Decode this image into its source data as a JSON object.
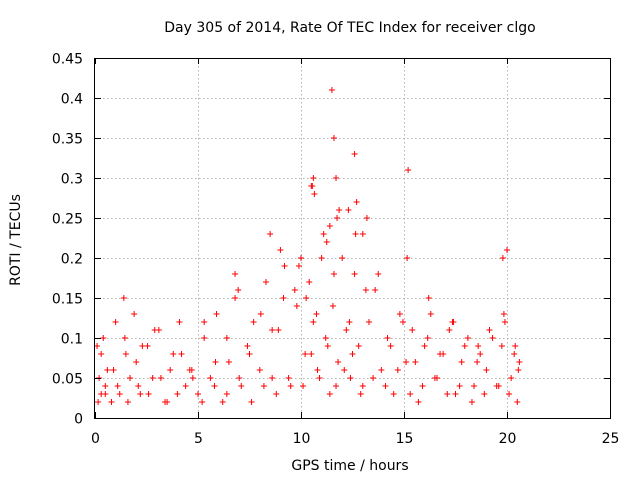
{
  "chart_data": {
    "type": "scatter",
    "title": "Day 305 of 2014, Rate Of TEC Index for receiver clgo",
    "xlabel": "GPS time / hours",
    "ylabel": "ROTI / TECUs",
    "xlim": [
      0,
      25
    ],
    "ylim": [
      0,
      0.45
    ],
    "xticks": [
      0,
      5,
      10,
      15,
      20,
      25
    ],
    "xtick_labels": [
      "0",
      "5",
      "10",
      "15",
      "20",
      "25"
    ],
    "yticks": [
      0,
      0.05,
      0.1,
      0.15,
      0.2,
      0.25,
      0.3,
      0.35,
      0.4,
      0.45
    ],
    "ytick_labels": [
      "0",
      "0.05",
      "0.1",
      "0.15",
      "0.2",
      "0.25",
      "0.3",
      "0.35",
      "0.4",
      "0.45"
    ],
    "grid": true,
    "marker": "+",
    "color": "#ff0000",
    "series": [
      {
        "name": "ROTI",
        "x": [
          0.1,
          0.2,
          0.3,
          0.4,
          0.5,
          0.6,
          0.8,
          1.0,
          1.2,
          1.4,
          1.5,
          1.7,
          1.9,
          2.1,
          2.3,
          2.6,
          2.9,
          3.2,
          3.5,
          3.8,
          4.1,
          4.4,
          4.7,
          5.0,
          5.3,
          5.6,
          5.9,
          6.2,
          6.5,
          6.8,
          7.1,
          7.4,
          7.7,
          8.0,
          8.3,
          8.6,
          8.9,
          9.2,
          9.5,
          9.8,
          10.0,
          10.2,
          10.4,
          10.6,
          10.8,
          11.0,
          11.2,
          11.4,
          11.6,
          11.8,
          12.0,
          12.2,
          12.4,
          12.6,
          12.8,
          13.0,
          13.3,
          13.6,
          13.9,
          14.2,
          14.5,
          14.8,
          15.1,
          15.4,
          15.7,
          16.0,
          16.3,
          16.6,
          16.9,
          17.2,
          17.5,
          17.8,
          18.1,
          18.4,
          18.7,
          19.0,
          19.3,
          19.6,
          19.8,
          19.9,
          20.0,
          20.2,
          20.4,
          20.6,
          0.15,
          0.5,
          1.1,
          1.6,
          2.2,
          2.8,
          3.4,
          4.0,
          4.6,
          5.2,
          5.8,
          6.4,
          7.0,
          7.6,
          8.2,
          8.8,
          9.4,
          10.1,
          10.5,
          10.9,
          11.3,
          11.7,
          12.1,
          12.5,
          12.9,
          13.5,
          14.1,
          14.7,
          15.3,
          15.9,
          16.5,
          17.1,
          17.7,
          18.3,
          18.9,
          19.5,
          20.1,
          20.5,
          0.3,
          0.9,
          1.45,
          2.0,
          2.55,
          3.1,
          3.65,
          4.2,
          4.75,
          5.3,
          5.85,
          6.4,
          6.95,
          7.5,
          8.05,
          8.6,
          9.15,
          9.7,
          10.25,
          10.75,
          11.25,
          11.55,
          11.75,
          11.85,
          12.35,
          12.65,
          13.15,
          13.75,
          14.35,
          14.95,
          15.15,
          15.55,
          16.15,
          16.75,
          17.35,
          17.95,
          18.55,
          19.15,
          19.75,
          19.85,
          20.35,
          20.55,
          10.5,
          10.6,
          11.1,
          11.5,
          11.6,
          11.7,
          12.6,
          12.7,
          13.2,
          15.2,
          10.55,
          10.65,
          8.5,
          9.0,
          11.4,
          12.3,
          13.0,
          16.2,
          17.4,
          18.6,
          9.9,
          6.8
        ],
        "y": [
          0.09,
          0.05,
          0.03,
          0.1,
          0.04,
          0.06,
          0.02,
          0.12,
          0.03,
          0.15,
          0.08,
          0.05,
          0.13,
          0.04,
          0.09,
          0.03,
          0.11,
          0.05,
          0.02,
          0.08,
          0.12,
          0.04,
          0.06,
          0.03,
          0.1,
          0.05,
          0.13,
          0.02,
          0.07,
          0.15,
          0.04,
          0.09,
          0.12,
          0.06,
          0.17,
          0.05,
          0.11,
          0.19,
          0.04,
          0.14,
          0.2,
          0.08,
          0.17,
          0.12,
          0.06,
          0.2,
          0.1,
          0.03,
          0.18,
          0.07,
          0.2,
          0.11,
          0.05,
          0.18,
          0.09,
          0.04,
          0.12,
          0.16,
          0.06,
          0.1,
          0.03,
          0.13,
          0.07,
          0.11,
          0.02,
          0.09,
          0.13,
          0.05,
          0.08,
          0.11,
          0.03,
          0.07,
          0.1,
          0.04,
          0.08,
          0.06,
          0.1,
          0.04,
          0.2,
          0.12,
          0.21,
          0.05,
          0.09,
          0.07,
          0.02,
          0.03,
          0.04,
          0.02,
          0.03,
          0.05,
          0.02,
          0.03,
          0.06,
          0.02,
          0.04,
          0.03,
          0.05,
          0.02,
          0.04,
          0.03,
          0.05,
          0.04,
          0.08,
          0.05,
          0.09,
          0.04,
          0.06,
          0.08,
          0.03,
          0.05,
          0.04,
          0.06,
          0.03,
          0.04,
          0.05,
          0.03,
          0.04,
          0.02,
          0.03,
          0.04,
          0.03,
          0.02,
          0.08,
          0.06,
          0.1,
          0.07,
          0.09,
          0.11,
          0.06,
          0.08,
          0.05,
          0.12,
          0.07,
          0.1,
          0.16,
          0.08,
          0.13,
          0.11,
          0.15,
          0.16,
          0.15,
          0.13,
          0.22,
          0.14,
          0.25,
          0.26,
          0.12,
          0.23,
          0.16,
          0.18,
          0.09,
          0.12,
          0.2,
          0.07,
          0.1,
          0.08,
          0.12,
          0.09,
          0.07,
          0.11,
          0.09,
          0.13,
          0.08,
          0.06,
          0.29,
          0.3,
          0.23,
          0.41,
          0.35,
          0.3,
          0.33,
          0.27,
          0.25,
          0.31,
          0.29,
          0.28,
          0.23,
          0.21,
          0.24,
          0.26,
          0.23,
          0.15,
          0.12,
          0.09,
          0.19,
          0.18
        ]
      }
    ]
  }
}
